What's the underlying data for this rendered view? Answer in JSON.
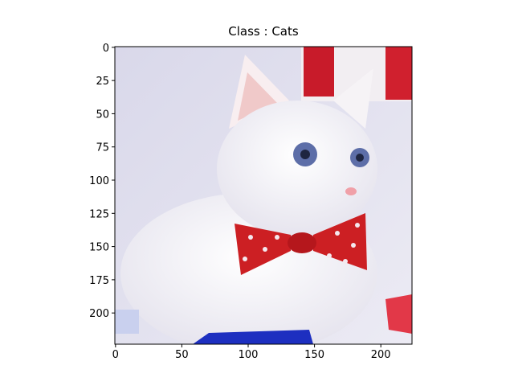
{
  "chart_data": {
    "type": "image",
    "title": "Class : Cats",
    "xlim": [
      -0.5,
      223.5
    ],
    "xticks": [
      0,
      50,
      100,
      150,
      200
    ],
    "ylim": [
      223.5,
      -0.5
    ],
    "yticks": [
      0,
      25,
      50,
      75,
      100,
      125,
      150,
      175,
      200
    ]
  }
}
